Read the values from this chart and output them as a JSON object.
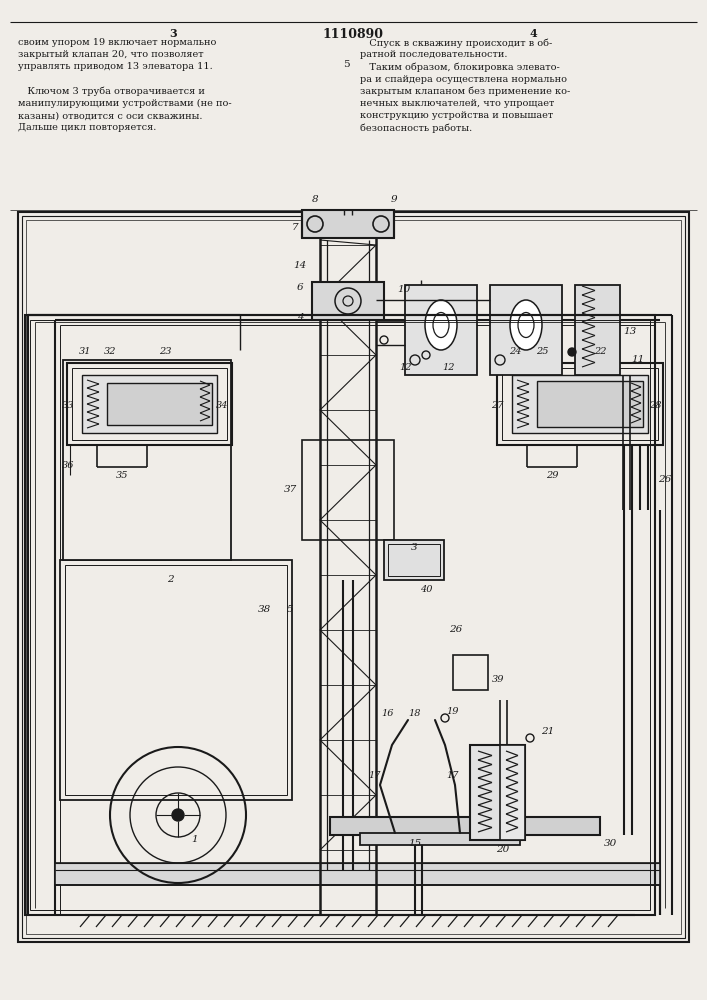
{
  "title": "1110890",
  "page_left": "3",
  "page_right": "4",
  "bg_color": "#f0ede8",
  "line_color": "#1a1a1a",
  "text_color": "#1a1a1a",
  "text_left_lines": [
    "своим упором 19 включает нормально",
    "закрытый клапан 20, что позволяет",
    "управлять приводом 13 элеватора 11.",
    "",
    "   Ключом 3 труба отворачивается и",
    "манипулирующими устройствами (не по-",
    "казаны) отводится с оси скважины.",
    "Дальше цикл повторяется."
  ],
  "text_right_lines": [
    "   Спуск в скважину происходит в об-",
    "ратной последовательности.",
    "   Таким образом, блокировка элевато-",
    "ра и спайдера осуществлена нормально",
    "закрытым клапаном без применение ко-",
    "нечных выключателей, что упрощает",
    "конструкцию устройства и повышает",
    "безопасность работы."
  ]
}
